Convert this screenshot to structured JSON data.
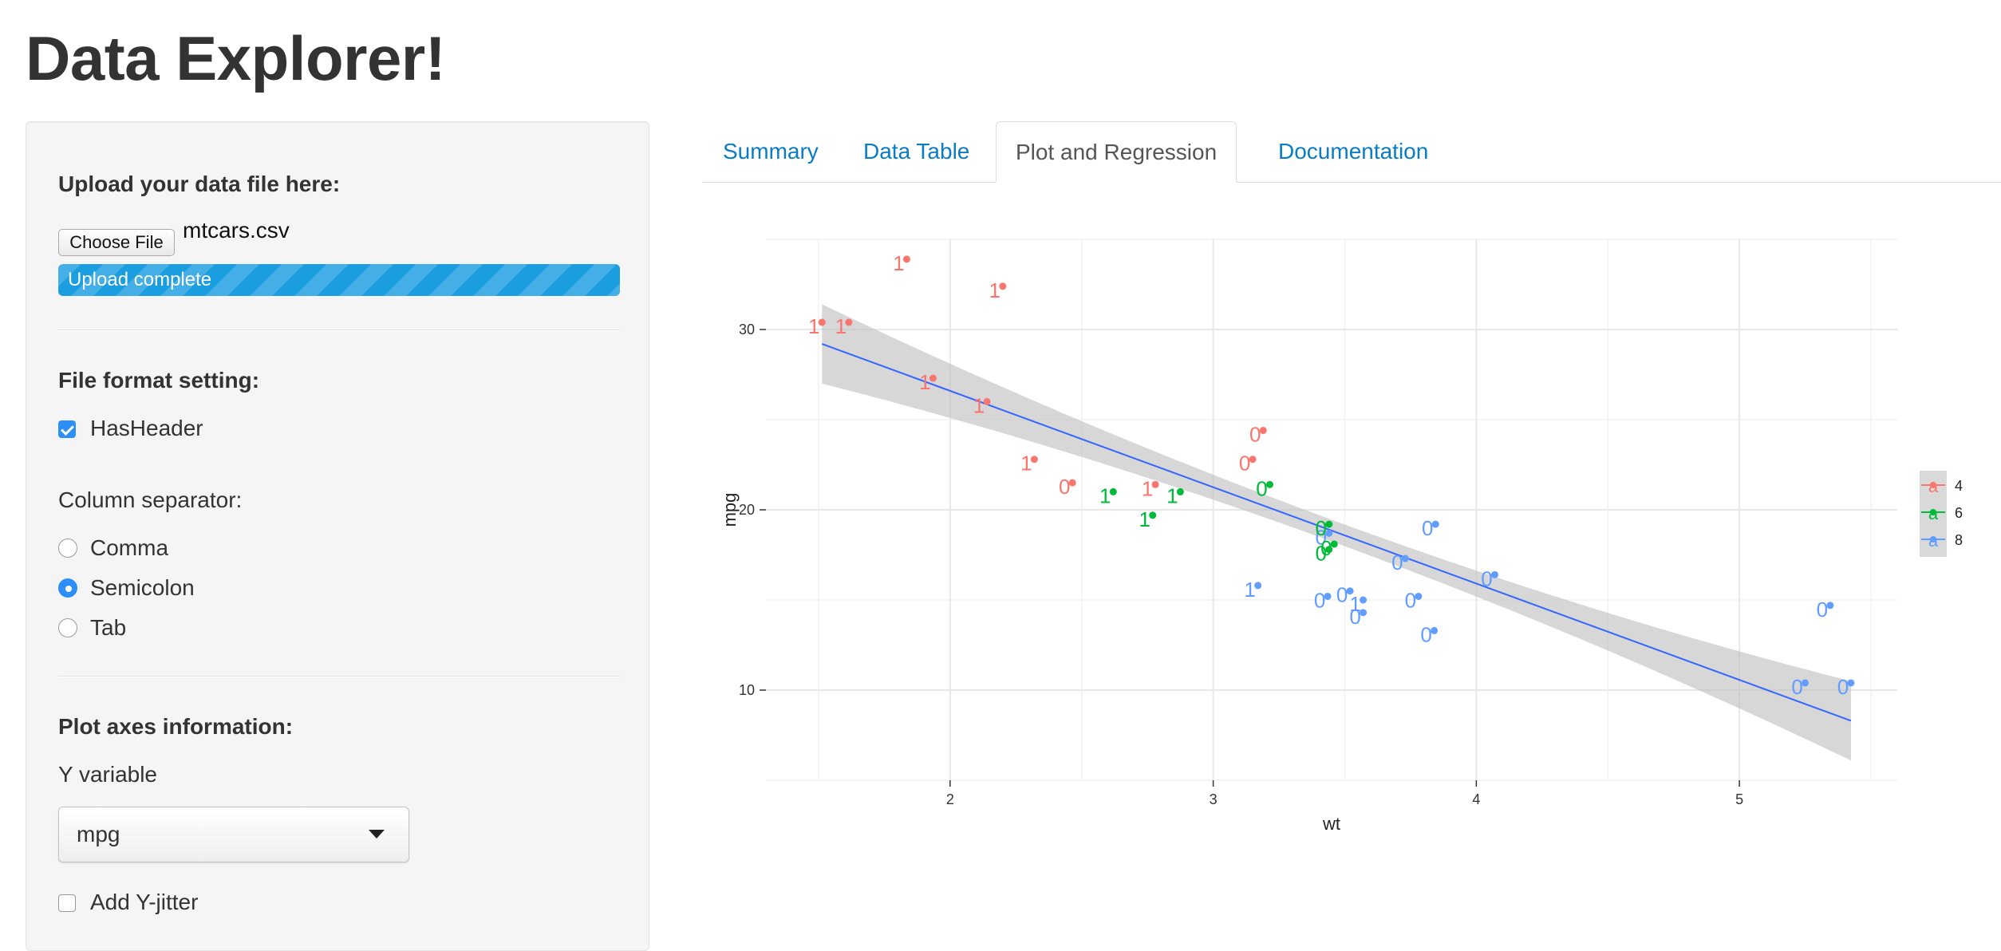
{
  "page": {
    "title": "Data Explorer!"
  },
  "sidebar": {
    "upload_label": "Upload your data file here:",
    "choose_file_label": "Choose File",
    "file_name": "mtcars.csv",
    "progress_text": "Upload complete",
    "progress_fraction": 1.0,
    "file_format_label": "File format setting:",
    "has_header_label": "HasHeader",
    "has_header_checked": true,
    "separator_label": "Column separator:",
    "separators": [
      {
        "label": "Comma",
        "checked": false
      },
      {
        "label": "Semicolon",
        "checked": true
      },
      {
        "label": "Tab",
        "checked": false
      }
    ],
    "plot_axes_label": "Plot axes information:",
    "y_variable_label": "Y variable",
    "y_variable_value": "mpg",
    "add_y_jitter_label": "Add Y-jitter",
    "add_y_jitter_checked": false
  },
  "tabs": [
    {
      "label": "Summary",
      "active": false
    },
    {
      "label": "Data Table",
      "active": false
    },
    {
      "label": "Plot and Regression",
      "active": true
    },
    {
      "label": "Documentation",
      "active": false
    }
  ],
  "colors": {
    "accent": "#2c8ef8",
    "link": "#0a7cc4",
    "progress": "#1a9ee0",
    "cyl4": "#f8766d",
    "cyl6": "#00ba38",
    "cyl8": "#619cff",
    "fit_line": "#3366ff",
    "ribbon": "#bdbdbd"
  },
  "chart_data": {
    "type": "scatter",
    "xlabel": "wt",
    "ylabel": "mpg",
    "xlim": [
      1.3,
      5.6
    ],
    "ylim": [
      5,
      35
    ],
    "xticks": [
      2,
      3,
      4,
      5
    ],
    "yticks": [
      10,
      20,
      30
    ],
    "grid": true,
    "legend": {
      "position": "right",
      "entries": [
        {
          "label": "4",
          "color": "#f8766d"
        },
        {
          "label": "6",
          "color": "#00ba38"
        },
        {
          "label": "8",
          "color": "#619cff"
        }
      ]
    },
    "regression": {
      "x": [
        1.513,
        5.424
      ],
      "y": [
        29.2,
        8.3
      ]
    },
    "points": [
      {
        "x": 2.62,
        "y": 21.0,
        "label": "1",
        "group": "6"
      },
      {
        "x": 2.875,
        "y": 21.0,
        "label": "1",
        "group": "6"
      },
      {
        "x": 2.32,
        "y": 22.8,
        "label": "1",
        "group": "4"
      },
      {
        "x": 3.215,
        "y": 21.4,
        "label": "0",
        "group": "6"
      },
      {
        "x": 3.44,
        "y": 18.7,
        "label": "0",
        "group": "8"
      },
      {
        "x": 3.46,
        "y": 18.1,
        "label": "0",
        "group": "6"
      },
      {
        "x": 3.57,
        "y": 14.3,
        "label": "0",
        "group": "8"
      },
      {
        "x": 3.19,
        "y": 24.4,
        "label": "0",
        "group": "4"
      },
      {
        "x": 3.15,
        "y": 22.8,
        "label": "0",
        "group": "4"
      },
      {
        "x": 3.44,
        "y": 19.2,
        "label": "0",
        "group": "6"
      },
      {
        "x": 3.44,
        "y": 17.8,
        "label": "0",
        "group": "6"
      },
      {
        "x": 4.07,
        "y": 16.4,
        "label": "0",
        "group": "8"
      },
      {
        "x": 3.73,
        "y": 17.3,
        "label": "0",
        "group": "8"
      },
      {
        "x": 3.78,
        "y": 15.2,
        "label": "0",
        "group": "8"
      },
      {
        "x": 5.25,
        "y": 10.4,
        "label": "0",
        "group": "8"
      },
      {
        "x": 5.424,
        "y": 10.4,
        "label": "0",
        "group": "8"
      },
      {
        "x": 5.345,
        "y": 14.7,
        "label": "0",
        "group": "8"
      },
      {
        "x": 2.2,
        "y": 32.4,
        "label": "1",
        "group": "4"
      },
      {
        "x": 1.615,
        "y": 30.4,
        "label": "1",
        "group": "4"
      },
      {
        "x": 1.835,
        "y": 33.9,
        "label": "1",
        "group": "4"
      },
      {
        "x": 2.465,
        "y": 21.5,
        "label": "0",
        "group": "4"
      },
      {
        "x": 3.52,
        "y": 15.5,
        "label": "0",
        "group": "8"
      },
      {
        "x": 3.435,
        "y": 15.2,
        "label": "0",
        "group": "8"
      },
      {
        "x": 3.84,
        "y": 13.3,
        "label": "0",
        "group": "8"
      },
      {
        "x": 3.845,
        "y": 19.2,
        "label": "0",
        "group": "8"
      },
      {
        "x": 1.935,
        "y": 27.3,
        "label": "1",
        "group": "4"
      },
      {
        "x": 2.14,
        "y": 26.0,
        "label": "1",
        "group": "4"
      },
      {
        "x": 1.513,
        "y": 30.4,
        "label": "1",
        "group": "4"
      },
      {
        "x": 3.17,
        "y": 15.8,
        "label": "1",
        "group": "8"
      },
      {
        "x": 2.77,
        "y": 19.7,
        "label": "1",
        "group": "6"
      },
      {
        "x": 3.57,
        "y": 15.0,
        "label": "1",
        "group": "8"
      },
      {
        "x": 2.78,
        "y": 21.4,
        "label": "1",
        "group": "4"
      }
    ]
  }
}
